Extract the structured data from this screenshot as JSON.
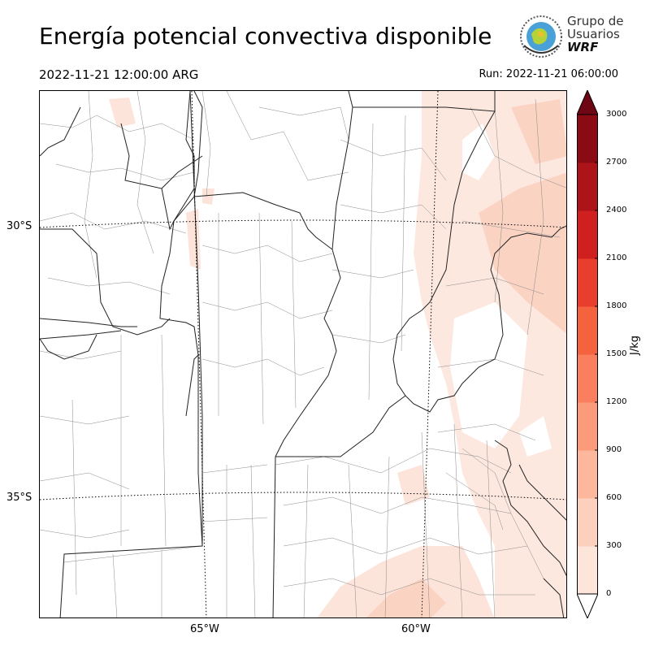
{
  "title": "Energía potencial convectiva disponible",
  "valid_time": "2022-11-21 12:00:00 ARG",
  "run_time": "Run: 2022-11-21 06:00:00",
  "logo": {
    "line1": "Grupo de",
    "line2": "Usuarios",
    "line3": "WRF"
  },
  "map": {
    "field": "CAPE",
    "lat_labels": [
      "30°S",
      "35°S"
    ],
    "lon_labels": [
      "65°W",
      "60°W"
    ]
  },
  "colorbar": {
    "unit": "J/kg",
    "ticks": [
      "0",
      "300",
      "600",
      "900",
      "1200",
      "1500",
      "1800",
      "2100",
      "2400",
      "2700",
      "3000"
    ],
    "colors": [
      "#fee5d9",
      "#fcd0bd",
      "#fcb79c",
      "#fb9b7a",
      "#fa7f5e",
      "#f4623e",
      "#e93d2e",
      "#cf1f1f",
      "#ad1419",
      "#8a0b13",
      "#6f0613",
      "#ffffff"
    ],
    "extend": "both"
  }
}
